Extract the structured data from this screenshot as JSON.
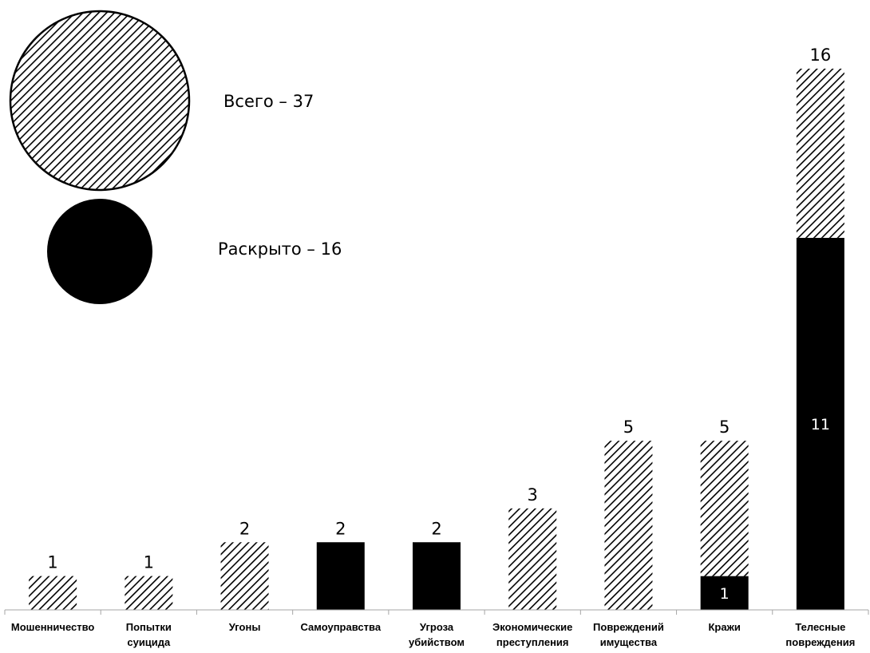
{
  "chart_data": {
    "type": "bar",
    "stacked": true,
    "categories": [
      "Мошенничество",
      "Попытки суицида",
      "Угоны",
      "Самоуправства",
      "Угроза убийством",
      "Экономические преступления",
      "Повреждений имущества",
      "Кражи",
      "Телесные повреждения"
    ],
    "totals": [
      1,
      1,
      2,
      2,
      2,
      3,
      5,
      5,
      16
    ],
    "series": [
      {
        "name": "Раскрыто",
        "values": [
          0,
          0,
          0,
          2,
          2,
          0,
          0,
          1,
          11
        ]
      },
      {
        "name": "Всего",
        "values": [
          1,
          1,
          2,
          0,
          0,
          3,
          5,
          4,
          5
        ]
      }
    ],
    "legend": [
      {
        "label": "Всего – 37",
        "style": "hatched"
      },
      {
        "label": "Раскрыто – 16",
        "style": "solid"
      }
    ],
    "inner_labels": [
      "",
      "",
      "",
      "",
      "",
      "",
      "",
      "1",
      "11"
    ],
    "ylim": [
      0,
      16
    ],
    "grid": false,
    "legend_position": "top-left",
    "colors": {
      "solved": "#000000",
      "total_hatch": "#000000",
      "background": "#ffffff"
    }
  }
}
